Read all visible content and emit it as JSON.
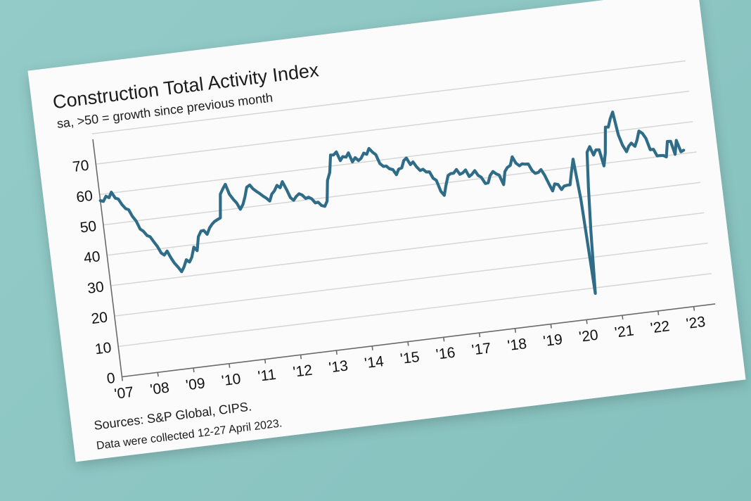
{
  "chart_data": {
    "type": "line",
    "title": "Construction Total Activity Index",
    "subtitle": "sa, >50 = growth since previous month",
    "xlabel": "",
    "ylabel": "",
    "ylim": [
      0,
      80
    ],
    "xlim": [
      2007.0,
      2023.6
    ],
    "y_ticks": [
      0,
      10,
      20,
      30,
      40,
      50,
      60,
      70
    ],
    "x_ticks": [
      2007,
      2008,
      2009,
      2010,
      2011,
      2012,
      2013,
      2014,
      2015,
      2016,
      2017,
      2018,
      2019,
      2020,
      2021,
      2022,
      2023
    ],
    "x_tick_labels": [
      "'07",
      "'08",
      "'09",
      "'10",
      "'11",
      "'12",
      "'13",
      "'14",
      "'15",
      "'16",
      "'17",
      "'18",
      "'19",
      "'20",
      "'21",
      "'22",
      "'23"
    ],
    "grid": true,
    "series": [
      {
        "name": "",
        "color": "#2e6c88",
        "points": [
          [
            2007.0,
            58.0
          ],
          [
            2007.08,
            57.6
          ],
          [
            2007.17,
            59.2
          ],
          [
            2007.25,
            58.6
          ],
          [
            2007.33,
            60.3
          ],
          [
            2007.42,
            58.2
          ],
          [
            2007.5,
            57.8
          ],
          [
            2007.58,
            55.9
          ],
          [
            2007.67,
            54.4
          ],
          [
            2007.75,
            53.9
          ],
          [
            2007.83,
            51.6
          ],
          [
            2007.92,
            49.9
          ],
          [
            2008.0,
            47.2
          ],
          [
            2008.08,
            46.4
          ],
          [
            2008.17,
            44.8
          ],
          [
            2008.25,
            44.3
          ],
          [
            2008.33,
            42.6
          ],
          [
            2008.42,
            40.8
          ],
          [
            2008.5,
            38.6
          ],
          [
            2008.58,
            37.8
          ],
          [
            2008.67,
            39.0
          ],
          [
            2008.75,
            36.7
          ],
          [
            2008.83,
            34.8
          ],
          [
            2008.92,
            33.3
          ],
          [
            2009.0,
            31.7
          ],
          [
            2009.08,
            33.1
          ],
          [
            2009.17,
            35.4
          ],
          [
            2009.25,
            34.5
          ],
          [
            2009.33,
            36.0
          ],
          [
            2009.42,
            39.2
          ],
          [
            2009.5,
            37.9
          ],
          [
            2009.58,
            42.4
          ],
          [
            2009.67,
            44.1
          ],
          [
            2009.75,
            44.2
          ],
          [
            2009.83,
            42.8
          ],
          [
            2009.92,
            44.8
          ],
          [
            2010.0,
            45.9
          ],
          [
            2010.08,
            46.7
          ],
          [
            2010.17,
            47.2
          ],
          [
            2010.25,
            47.6
          ],
          [
            2010.33,
            55.3
          ],
          [
            2010.42,
            57.0
          ],
          [
            2010.5,
            58.3
          ],
          [
            2010.58,
            54.9
          ],
          [
            2010.67,
            53.1
          ],
          [
            2010.75,
            51.8
          ],
          [
            2010.83,
            49.6
          ],
          [
            2010.92,
            51.1
          ],
          [
            2011.0,
            53.5
          ],
          [
            2011.08,
            56.5
          ],
          [
            2011.17,
            57.1
          ],
          [
            2011.25,
            55.7
          ],
          [
            2011.33,
            54.8
          ],
          [
            2011.42,
            53.9
          ],
          [
            2011.5,
            53.0
          ],
          [
            2011.58,
            52.2
          ],
          [
            2011.67,
            51.1
          ],
          [
            2011.75,
            53.3
          ],
          [
            2011.83,
            54.2
          ],
          [
            2011.92,
            55.9
          ],
          [
            2012.0,
            55.0
          ],
          [
            2012.08,
            56.9
          ],
          [
            2012.17,
            54.2
          ],
          [
            2012.25,
            51.4
          ],
          [
            2012.33,
            50.4
          ],
          [
            2012.42,
            51.6
          ],
          [
            2012.5,
            52.3
          ],
          [
            2012.58,
            51.8
          ],
          [
            2012.67,
            50.5
          ],
          [
            2012.75,
            50.8
          ],
          [
            2012.83,
            50.2
          ],
          [
            2012.92,
            48.7
          ],
          [
            2013.0,
            48.8
          ],
          [
            2013.08,
            47.6
          ],
          [
            2013.17,
            47.2
          ],
          [
            2013.25,
            48.8
          ],
          [
            2013.33,
            55.5
          ],
          [
            2013.42,
            58.0
          ],
          [
            2013.5,
            63.6
          ],
          [
            2013.58,
            63.5
          ],
          [
            2013.67,
            64.4
          ],
          [
            2013.75,
            61.4
          ],
          [
            2013.83,
            62.6
          ],
          [
            2013.92,
            62.3
          ],
          [
            2014.0,
            63.6
          ],
          [
            2014.08,
            60.5
          ],
          [
            2014.17,
            61.8
          ],
          [
            2014.25,
            60.7
          ],
          [
            2014.33,
            61.3
          ],
          [
            2014.42,
            62.9
          ],
          [
            2014.5,
            62.4
          ],
          [
            2014.58,
            64.2
          ],
          [
            2014.67,
            62.8
          ],
          [
            2014.75,
            61.9
          ],
          [
            2014.83,
            58.9
          ],
          [
            2014.92,
            57.8
          ],
          [
            2015.0,
            57.8
          ],
          [
            2015.08,
            56.8
          ],
          [
            2015.17,
            56.4
          ],
          [
            2015.25,
            54.6
          ],
          [
            2015.33,
            56.3
          ],
          [
            2015.42,
            56.6
          ],
          [
            2015.5,
            58.9
          ],
          [
            2015.58,
            59.6
          ],
          [
            2015.67,
            57.3
          ],
          [
            2015.75,
            58.1
          ],
          [
            2015.83,
            56.4
          ],
          [
            2015.92,
            55.0
          ],
          [
            2016.0,
            55.3
          ],
          [
            2016.08,
            54.3
          ],
          [
            2016.17,
            54.2
          ],
          [
            2016.25,
            52.0
          ],
          [
            2016.33,
            51.2
          ],
          [
            2016.42,
            47.4
          ],
          [
            2016.5,
            46.0
          ],
          [
            2016.58,
            49.2
          ],
          [
            2016.67,
            52.3
          ],
          [
            2016.75,
            52.8
          ],
          [
            2016.83,
            52.8
          ],
          [
            2016.92,
            53.9
          ],
          [
            2017.0,
            52.2
          ],
          [
            2017.08,
            52.5
          ],
          [
            2017.17,
            53.4
          ],
          [
            2017.25,
            51.1
          ],
          [
            2017.33,
            51.7
          ],
          [
            2017.42,
            52.8
          ],
          [
            2017.5,
            51.1
          ],
          [
            2017.58,
            50.4
          ],
          [
            2017.67,
            48.2
          ],
          [
            2017.75,
            48.3
          ],
          [
            2017.83,
            50.6
          ],
          [
            2017.92,
            51.8
          ],
          [
            2018.0,
            50.9
          ],
          [
            2018.08,
            50.4
          ],
          [
            2018.17,
            47.1
          ],
          [
            2018.25,
            51.3
          ],
          [
            2018.33,
            52.5
          ],
          [
            2018.42,
            53.1
          ],
          [
            2018.5,
            55.8
          ],
          [
            2018.58,
            53.6
          ],
          [
            2018.67,
            52.6
          ],
          [
            2018.75,
            53.1
          ],
          [
            2018.83,
            52.9
          ],
          [
            2018.92,
            52.8
          ],
          [
            2019.0,
            50.6
          ],
          [
            2019.08,
            49.5
          ],
          [
            2019.17,
            49.7
          ],
          [
            2019.25,
            50.5
          ],
          [
            2019.33,
            48.6
          ],
          [
            2019.42,
            45.6
          ],
          [
            2019.5,
            43.1
          ],
          [
            2019.58,
            45.3
          ],
          [
            2019.67,
            45.0
          ],
          [
            2019.75,
            43.2
          ],
          [
            2019.83,
            44.2
          ],
          [
            2019.92,
            44.4
          ],
          [
            2020.0,
            44.4
          ],
          [
            2020.08,
            48.4
          ],
          [
            2020.17,
            52.6
          ],
          [
            2020.25,
            39.3
          ],
          [
            2020.33,
            8.2
          ],
          [
            2020.42,
            28.9
          ],
          [
            2020.5,
            43.1
          ],
          [
            2020.58,
            54.3
          ],
          [
            2020.67,
            56.0
          ],
          [
            2020.75,
            53.1
          ],
          [
            2020.83,
            54.7
          ],
          [
            2020.92,
            54.6
          ],
          [
            2021.0,
            49.2
          ],
          [
            2021.08,
            53.3
          ],
          [
            2021.17,
            61.7
          ],
          [
            2021.25,
            61.6
          ],
          [
            2021.33,
            64.2
          ],
          [
            2021.42,
            66.3
          ],
          [
            2021.5,
            58.7
          ],
          [
            2021.58,
            55.2
          ],
          [
            2021.67,
            52.9
          ],
          [
            2021.75,
            54.6
          ],
          [
            2021.83,
            55.5
          ],
          [
            2021.92,
            54.3
          ],
          [
            2022.0,
            56.3
          ],
          [
            2022.08,
            59.1
          ],
          [
            2022.17,
            58.2
          ],
          [
            2022.25,
            56.4
          ],
          [
            2022.33,
            52.6
          ],
          [
            2022.42,
            52.6
          ],
          [
            2022.5,
            50.3
          ],
          [
            2022.58,
            50.3
          ],
          [
            2022.67,
            50.2
          ],
          [
            2022.75,
            49.6
          ],
          [
            2022.83,
            54.6
          ],
          [
            2022.92,
            54.5
          ],
          [
            2023.0,
            50.1
          ],
          [
            2023.08,
            54.6
          ],
          [
            2023.17,
            50.7
          ],
          [
            2023.25,
            51.1
          ]
        ]
      }
    ]
  },
  "footer": {
    "sources": "Sources: S&P Global, CIPS.",
    "note": "Data were collected 12-27 April 2023."
  }
}
